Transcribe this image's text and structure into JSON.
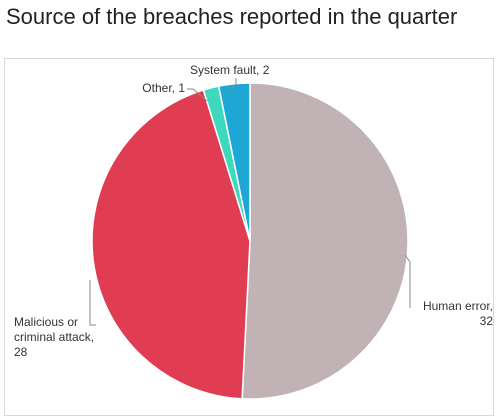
{
  "chart_data": {
    "type": "pie",
    "title": "Source of the breaches reported in the quarter",
    "values": [
      32,
      28,
      1,
      2
    ],
    "value_labels": [
      "Human error, 32",
      "Malicious or criminal attack, 28",
      "Other, 1",
      "System fault, 2"
    ],
    "colors": [
      "#c1b3b5",
      "#e03d53",
      "#3ed8bf",
      "#1ea7d4"
    ]
  }
}
